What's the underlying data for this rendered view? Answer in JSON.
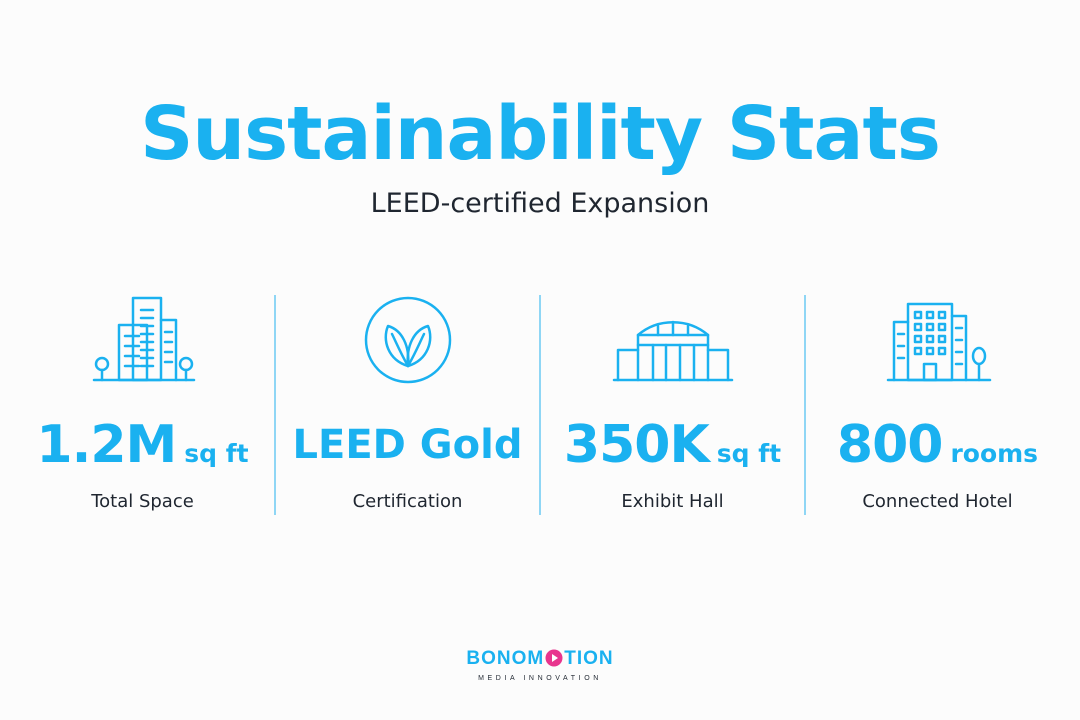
{
  "header": {
    "title": "Sustainability Stats",
    "subtitle": "LEED-certified Expansion"
  },
  "stats": [
    {
      "icon": "buildings-icon",
      "value": "1.2M",
      "unit": "sq ft",
      "label": "Total Space"
    },
    {
      "icon": "leaf-badge-icon",
      "value": "LEED Gold",
      "unit": "",
      "label": "Certification"
    },
    {
      "icon": "exhibit-hall-icon",
      "value": "350K",
      "unit": "sq ft",
      "label": "Exhibit Hall"
    },
    {
      "icon": "hotel-icon",
      "value": "800",
      "unit": "rooms",
      "label": "Connected Hotel"
    }
  ],
  "logo": {
    "word_part1": "BONOM",
    "word_part2": "TION",
    "tagline": "MEDIA INNOVATION"
  },
  "colors": {
    "accent": "#1ab1f0",
    "text": "#1f2630",
    "logo_play": "#e8358e",
    "background": "#fcfcfc"
  }
}
